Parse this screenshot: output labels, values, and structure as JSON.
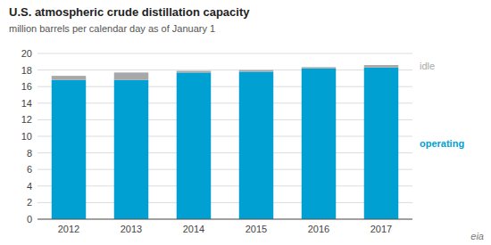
{
  "chart_data": {
    "type": "bar",
    "stacked": true,
    "title": "U.S. atmospheric crude distillation capacity",
    "subtitle": "million barrels per calendar day as of January 1",
    "categories": [
      "2012",
      "2013",
      "2014",
      "2015",
      "2016",
      "2017"
    ],
    "series": [
      {
        "name": "operating",
        "color": "#00a0d2",
        "values": [
          16.8,
          16.8,
          17.7,
          17.8,
          18.2,
          18.3
        ]
      },
      {
        "name": "idle",
        "color": "#a8a8a8",
        "values": [
          0.5,
          0.9,
          0.2,
          0.2,
          0.15,
          0.3
        ]
      }
    ],
    "ylim": [
      0,
      20
    ],
    "yticks": [
      0,
      2,
      4,
      6,
      8,
      10,
      12,
      14,
      16,
      18,
      20
    ],
    "grid": true,
    "legend": "right",
    "annotations": [
      "eia"
    ]
  }
}
